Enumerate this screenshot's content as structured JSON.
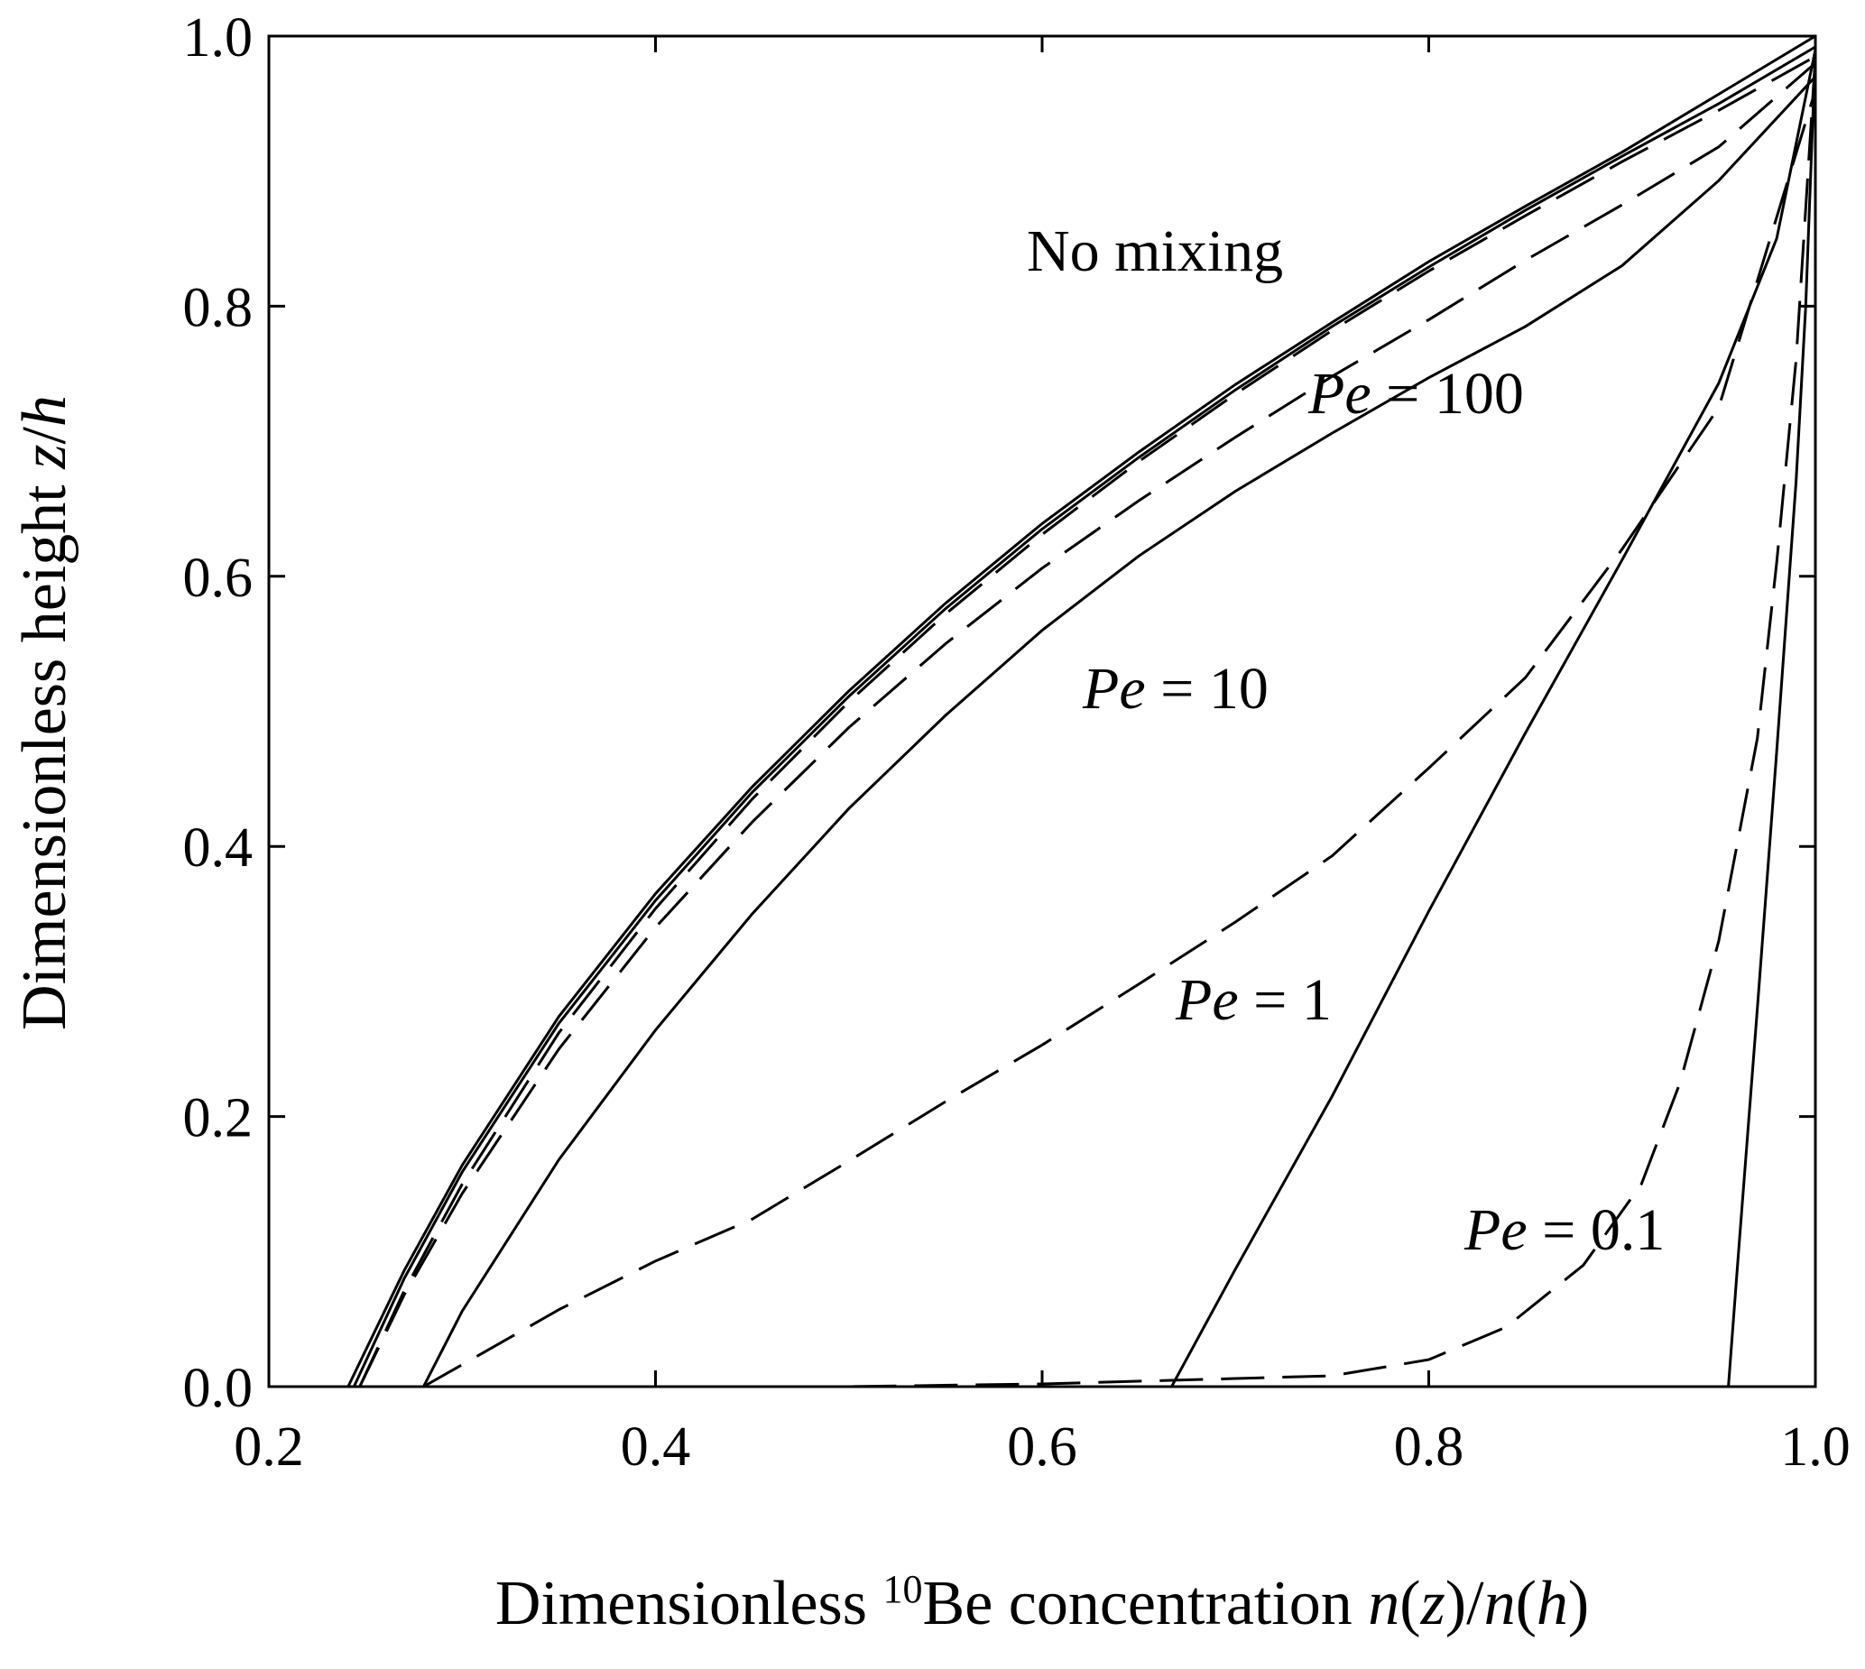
{
  "chart_data": {
    "type": "line",
    "title": "",
    "xlabel_parts": {
      "prefix": "Dimensionless ",
      "isotope_mass": "10",
      "isotope_rest": "Be concentration ",
      "n1": "n",
      "p1": "(",
      "z": "z",
      "p2": ")/",
      "n2": "n",
      "p3": "(",
      "h": "h",
      "p4": ")"
    },
    "ylabel_parts": {
      "prefix": "Dimensionless height ",
      "z": "z",
      "slash": "/",
      "h": "h"
    },
    "xlim": [
      0.2,
      1.0
    ],
    "ylim": [
      0.0,
      1.0
    ],
    "xticks": [
      "0.2",
      "0.4",
      "0.6",
      "0.8",
      "1.0"
    ],
    "yticks": [
      "0.0",
      "0.2",
      "0.4",
      "0.6",
      "0.8",
      "1.0"
    ],
    "grid": false,
    "series": [
      {
        "style": "solid",
        "x": [
          0.241,
          0.27,
          0.3,
          0.35,
          0.4,
          0.45,
          0.5,
          0.55,
          0.6,
          0.65,
          0.7,
          0.75,
          0.8,
          0.85,
          0.9,
          0.95,
          1.0
        ],
        "y": [
          0.0,
          0.086,
          0.164,
          0.274,
          0.365,
          0.444,
          0.515,
          0.58,
          0.639,
          0.692,
          0.742,
          0.788,
          0.833,
          0.874,
          0.914,
          0.957,
          1.0
        ]
      },
      {
        "style": "solid",
        "x": [
          0.244,
          0.27,
          0.3,
          0.35,
          0.4,
          0.45,
          0.5,
          0.55,
          0.6,
          0.65,
          0.7,
          0.75,
          0.8,
          0.85,
          0.9,
          0.95,
          1.0
        ],
        "y": [
          0.0,
          0.08,
          0.159,
          0.269,
          0.36,
          0.44,
          0.511,
          0.576,
          0.635,
          0.688,
          0.738,
          0.785,
          0.829,
          0.871,
          0.911,
          0.95,
          0.992
        ]
      },
      {
        "style": "dashed",
        "x": [
          0.247,
          0.27,
          0.3,
          0.35,
          0.4,
          0.45,
          0.5,
          0.55,
          0.6,
          0.65,
          0.7,
          0.75,
          0.8,
          0.85,
          0.9,
          0.95,
          1.0
        ],
        "y": [
          0.0,
          0.071,
          0.15,
          0.262,
          0.354,
          0.435,
          0.507,
          0.572,
          0.631,
          0.685,
          0.735,
          0.782,
          0.826,
          0.867,
          0.907,
          0.945,
          0.985
        ]
      },
      {
        "style": "dashed",
        "x": [
          0.247,
          0.27,
          0.3,
          0.35,
          0.4,
          0.45,
          0.5,
          0.55,
          0.6,
          0.65,
          0.7,
          0.75,
          0.8,
          0.85,
          0.9,
          0.95,
          1.0
        ],
        "y": [
          0.0,
          0.068,
          0.143,
          0.25,
          0.34,
          0.418,
          0.488,
          0.55,
          0.606,
          0.656,
          0.703,
          0.748,
          0.79,
          0.834,
          0.875,
          0.918,
          0.98
        ]
      },
      {
        "style": "solid",
        "x": [
          0.28,
          0.3,
          0.35,
          0.4,
          0.45,
          0.5,
          0.55,
          0.6,
          0.65,
          0.7,
          0.75,
          0.8,
          0.85,
          0.9,
          0.95,
          1.0
        ],
        "y": [
          0.0,
          0.056,
          0.168,
          0.264,
          0.35,
          0.428,
          0.497,
          0.56,
          0.615,
          0.663,
          0.706,
          0.747,
          0.785,
          0.83,
          0.893,
          0.97
        ]
      },
      {
        "style": "dashed",
        "x": [
          0.28,
          0.35,
          0.4,
          0.45,
          0.5,
          0.55,
          0.6,
          0.65,
          0.7,
          0.75,
          0.8,
          0.85,
          0.9,
          0.95,
          1.0
        ],
        "y": [
          0.0,
          0.057,
          0.093,
          0.124,
          0.167,
          0.211,
          0.253,
          0.298,
          0.344,
          0.393,
          0.458,
          0.525,
          0.62,
          0.725,
          0.96
        ]
      },
      {
        "style": "solid",
        "x": [
          0.667,
          0.7,
          0.75,
          0.8,
          0.85,
          0.9,
          0.95,
          0.98,
          1.0
        ],
        "y": [
          0.0,
          0.087,
          0.215,
          0.352,
          0.484,
          0.612,
          0.743,
          0.85,
          0.99
        ]
      },
      {
        "style": "dashed",
        "x": [
          0.28,
          0.5,
          0.6,
          0.7,
          0.75,
          0.8,
          0.84,
          0.88,
          0.91,
          0.93,
          0.95,
          0.97,
          0.98,
          0.99,
          1.0
        ],
        "y": [
          0.0,
          0.0,
          0.002,
          0.006,
          0.008,
          0.02,
          0.044,
          0.09,
          0.15,
          0.225,
          0.33,
          0.48,
          0.61,
          0.76,
          0.985
        ]
      },
      {
        "style": "solid",
        "x": [
          0.955,
          0.96,
          0.97,
          0.98,
          0.99,
          0.995,
          1.0
        ],
        "y": [
          0.0,
          0.095,
          0.28,
          0.47,
          0.67,
          0.8,
          0.99
        ]
      }
    ],
    "annotations": [
      {
        "id": "no_mixing",
        "text": "No mixing",
        "italic_part": "",
        "rest": ""
      },
      {
        "id": "pe100",
        "italic_part": "Pe",
        "rest": " = 100"
      },
      {
        "id": "pe10",
        "italic_part": "Pe",
        "rest": " = 10"
      },
      {
        "id": "pe1",
        "italic_part": "Pe",
        "rest": " = 1"
      },
      {
        "id": "pe01",
        "italic_part": "Pe",
        "rest": " = 0.1"
      }
    ]
  }
}
